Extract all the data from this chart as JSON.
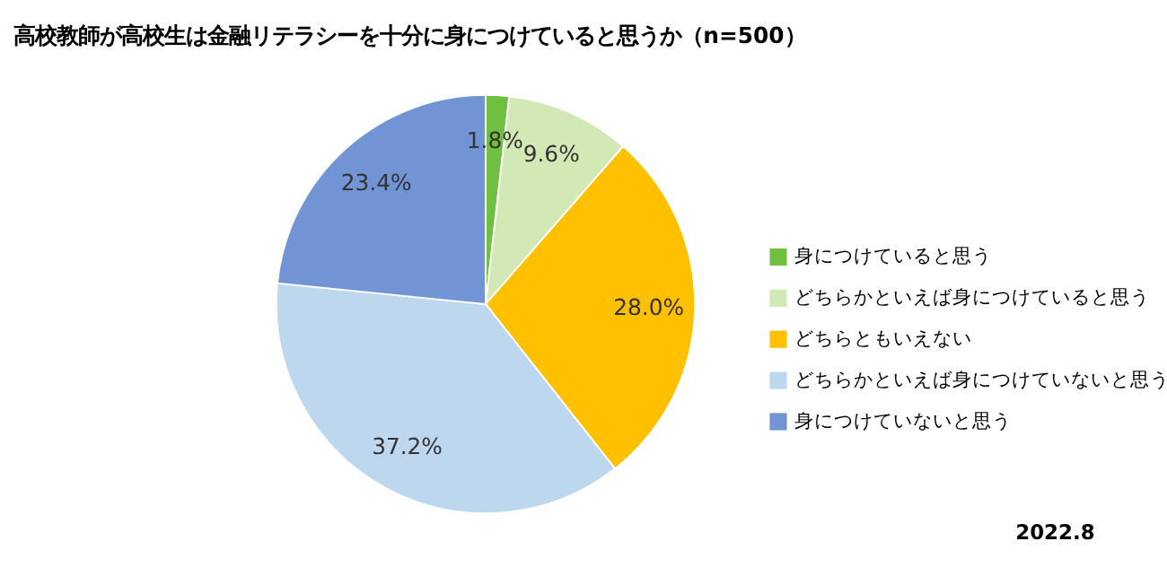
{
  "chart_data": {
    "type": "pie",
    "title": "高校教師が高校生は金融リテラシーを十分に身につけていると思うか（n=500）",
    "categories": [
      "身につけていると思う",
      "どちらかといえば身につけていると思う",
      "どちらともいえない",
      "どちらかといえば身につけていないと思う",
      "身につけていないと思う"
    ],
    "values": [
      1.8,
      9.6,
      28.0,
      37.2,
      23.4
    ],
    "value_labels": [
      "1.8%",
      "9.6%",
      "28.0%",
      "37.2%",
      "23.4%"
    ],
    "colors": [
      "#70c040",
      "#d3e9b5",
      "#ffc000",
      "#bdd7ee",
      "#7094d4"
    ],
    "legend": "right",
    "annotations": [
      "2022.8"
    ]
  }
}
